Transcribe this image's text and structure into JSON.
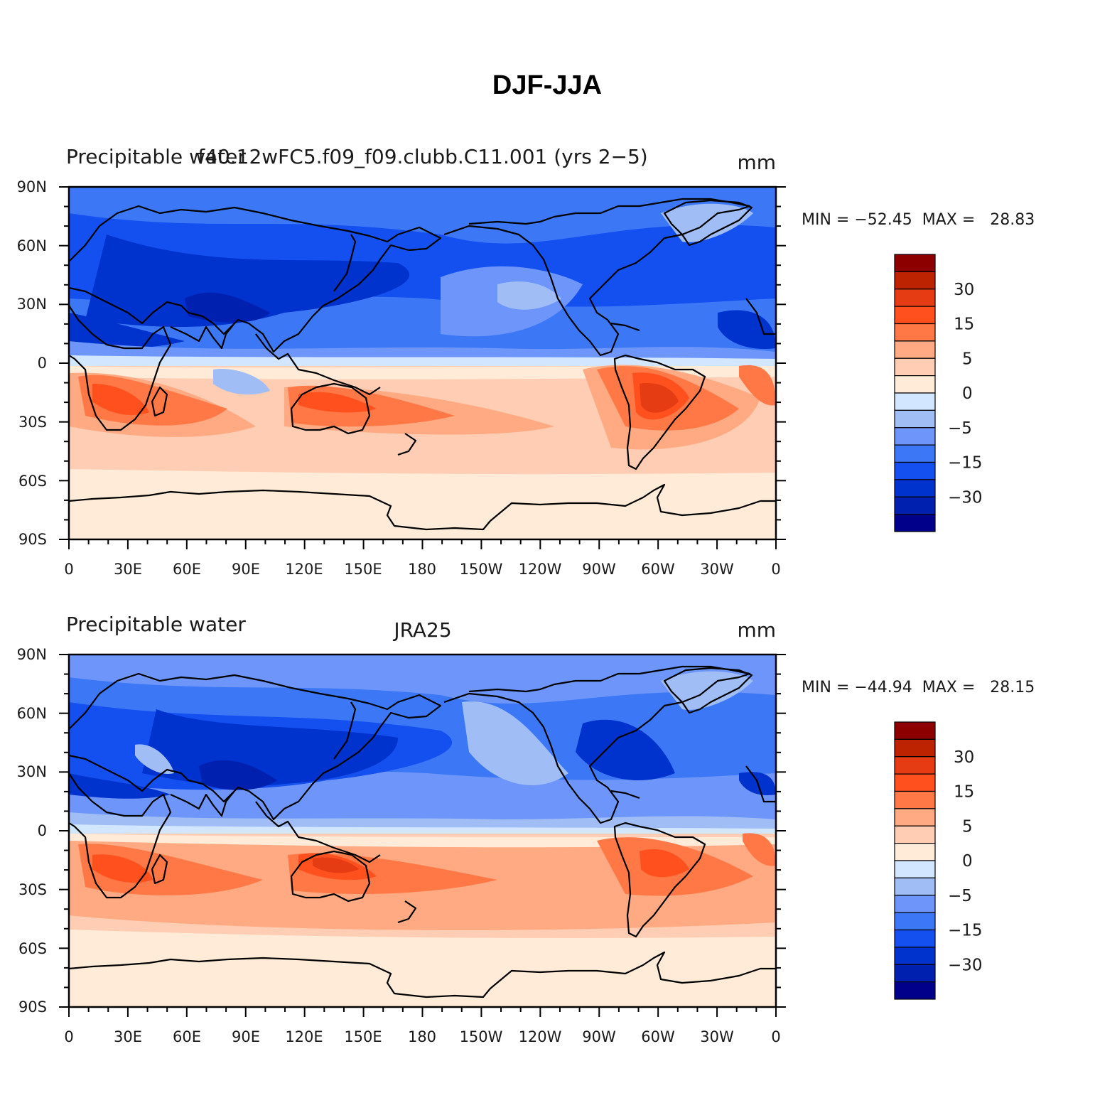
{
  "title": "DJF-JJA",
  "colorbar": {
    "colors": [
      "#00008b",
      "#0020b0",
      "#0032cd",
      "#1450f0",
      "#3c78f5",
      "#6e96fa",
      "#a0bef5",
      "#d2e6ff",
      "#ffebd7",
      "#ffcdb4",
      "#ffaa82",
      "#ff7846",
      "#ff501e",
      "#e63c14",
      "#be2300",
      "#8c0000"
    ],
    "labels": [
      "30",
      "15",
      "5",
      "0",
      "−5",
      "−15",
      "−30"
    ]
  },
  "lon_labels": [
    "0",
    "30E",
    "60E",
    "90E",
    "120E",
    "150E",
    "180",
    "150W",
    "120W",
    "90W",
    "60W",
    "30W",
    "0"
  ],
  "lat_labels": [
    "90N",
    "60N",
    "30N",
    "0",
    "30S",
    "60S",
    "90S"
  ],
  "panels": [
    {
      "left_label": "Precipitable water",
      "case_label": "f40.12wFC5.f09_f09.clubb.C11.001 (yrs 2−5)",
      "units": "mm",
      "min_max": "MIN = −52.45  MAX =   28.83"
    },
    {
      "left_label": "Precipitable water",
      "case_label": "JRA25",
      "units": "mm",
      "min_max": "MIN = −44.94  MAX =   28.15"
    }
  ]
}
